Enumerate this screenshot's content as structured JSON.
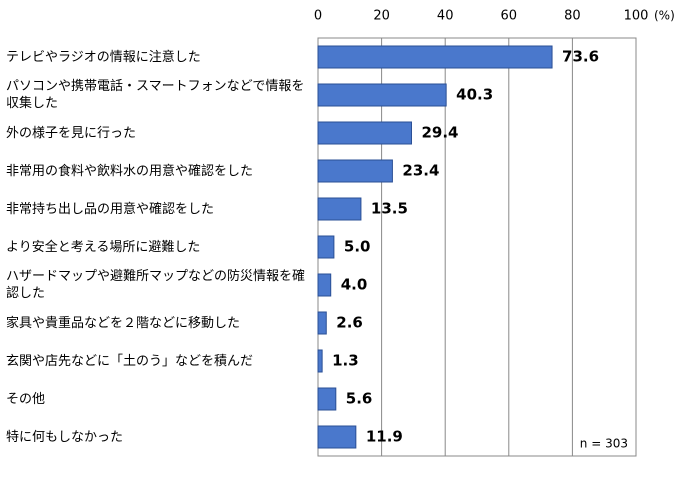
{
  "chart_data": {
    "type": "barh",
    "categories": [
      "テレビやラジオの情報に注意した",
      "パソコンや携帯電話・スマートフォンなどで情報を収集した",
      "外の様子を見に行った",
      "非常用の食料や飲料水の用意や確認をした",
      "非常持ち出し品の用意や確認をした",
      "より安全と考える場所に避難した",
      "ハザードマップや避難所マップなどの防災情報を確認した",
      "家具や貴重品などを２階などに移動した",
      "玄関や店先などに「土のう」などを積んだ",
      "その他",
      "特に何もしなかった"
    ],
    "values": [
      73.6,
      40.3,
      29.4,
      23.4,
      13.5,
      5.0,
      4.0,
      2.6,
      1.3,
      5.6,
      11.9
    ],
    "value_labels": [
      "73.6",
      "40.3",
      "29.4",
      "23.4",
      "13.5",
      "5.0",
      "4.0",
      "2.6",
      "1.3",
      "5.6",
      "11.9"
    ],
    "color": "#4a78cc",
    "xlim": [
      0,
      100
    ],
    "xticks": [
      0,
      20,
      40,
      60,
      80,
      100
    ],
    "unit": "(%)",
    "annotation": "n = 303",
    "grid": true
  }
}
